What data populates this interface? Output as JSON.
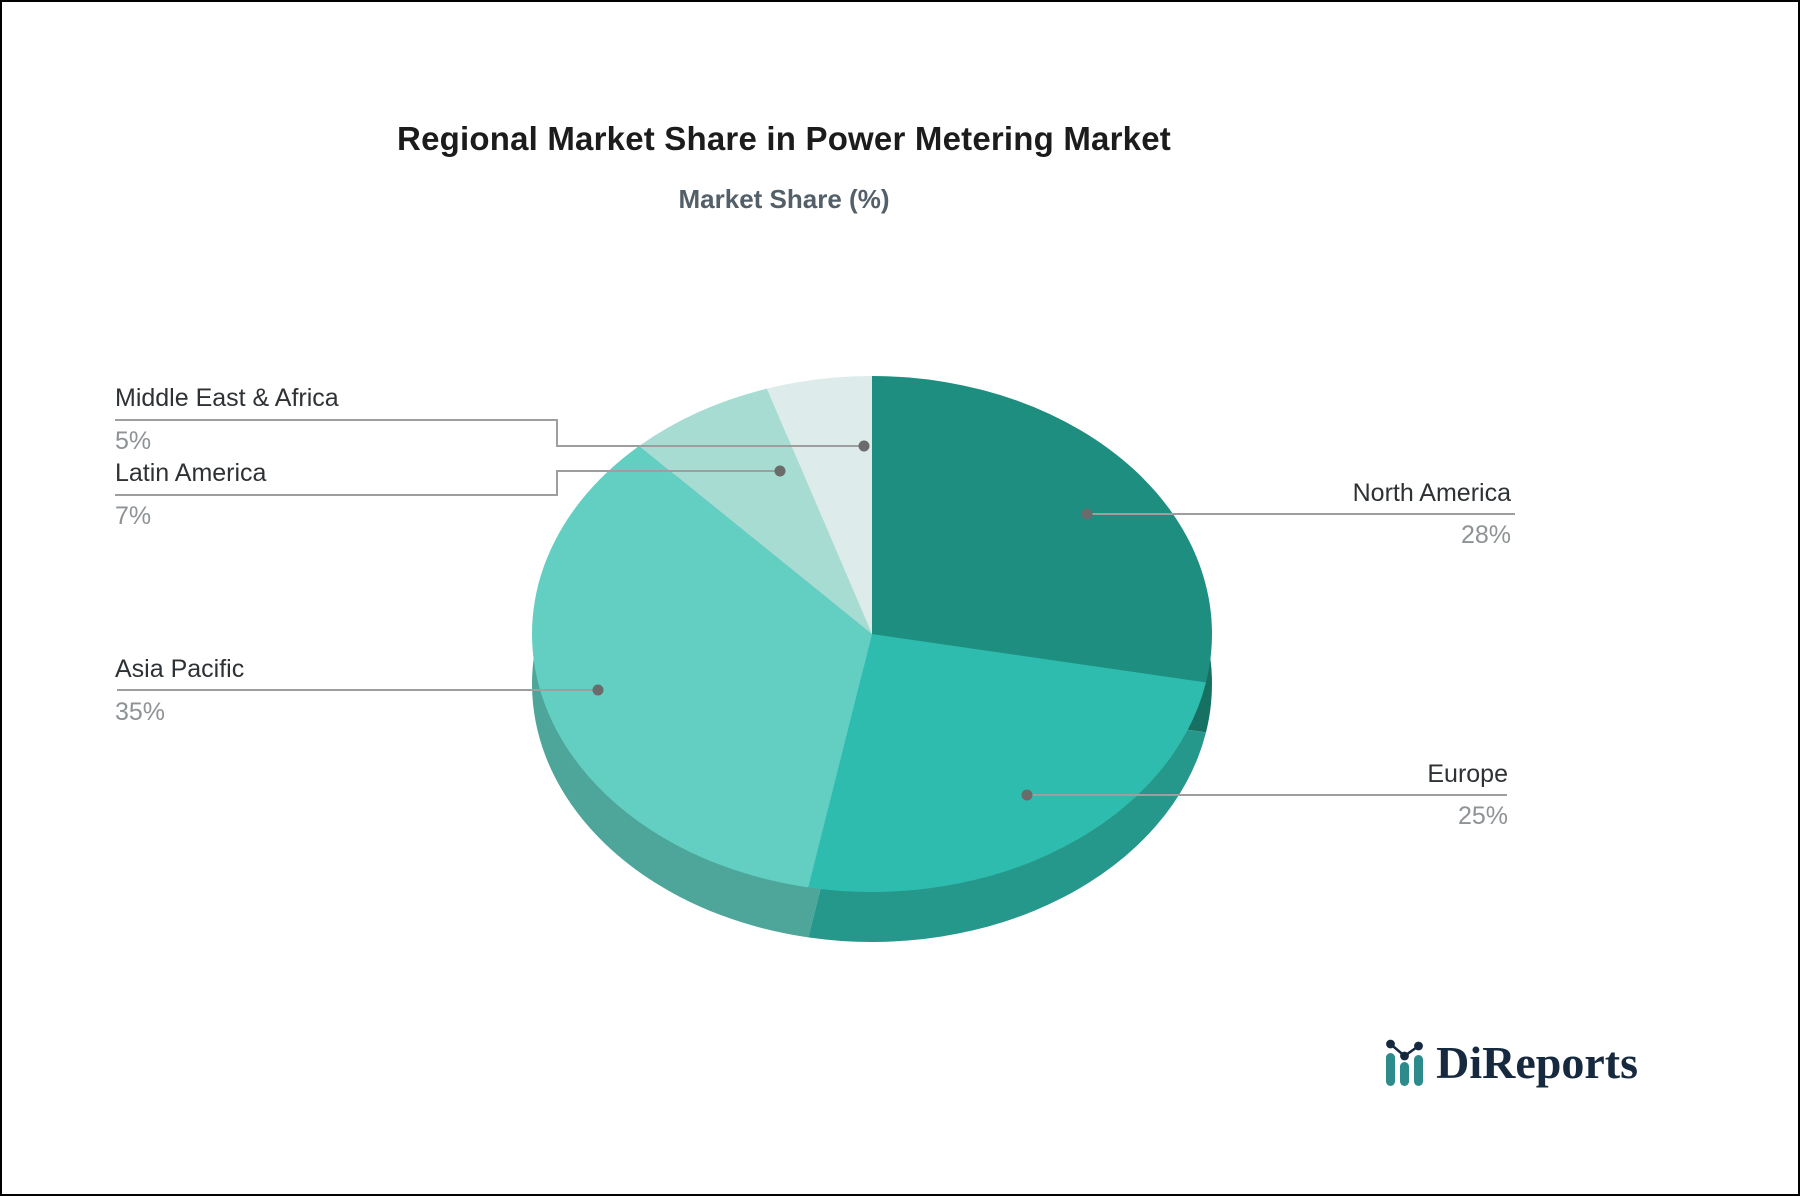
{
  "title": "Regional Market Share in Power Metering Market",
  "subtitle": "Market Share (%)",
  "chart_data": {
    "type": "pie",
    "title": "Regional Market Share in Power Metering Market",
    "subtitle": "Market Share (%)",
    "unit": "%",
    "style": "3d-pie",
    "start_angle_deg": -90,
    "direction": "clockwise",
    "legend": "none",
    "label_style": "callout leader lines with region name above line and percent below",
    "slices": [
      {
        "label": "North America",
        "value": 28,
        "display": "28%",
        "color": "#1d8e80",
        "side_color": "#177163"
      },
      {
        "label": "Europe",
        "value": 25,
        "display": "25%",
        "color": "#2ebcae",
        "side_color": "#26978b"
      },
      {
        "label": "Asia Pacific",
        "value": 35,
        "display": "35%",
        "color": "#62cfc2",
        "side_color": "#4ea59a"
      },
      {
        "label": "Latin America",
        "value": 7,
        "display": "7%",
        "color": "#a7dcd3",
        "side_color": "#85b0a8"
      },
      {
        "label": "Middle East & Africa",
        "value": 5,
        "display": "5%",
        "color": "#ddecea",
        "side_color": "#b0bcba"
      }
    ]
  },
  "logo": {
    "text": "DiReports",
    "icon": "bar-line-chart-icon",
    "text_color": "#16293e",
    "icon_bar_color": "#2e8b8b",
    "icon_dot_color": "#16293e"
  },
  "colors": {
    "background": "#ffffff",
    "frame_border": "#000000",
    "title": "#1c1c1c",
    "subtitle": "#546069",
    "label_text": "#2e3235",
    "value_text": "#8e9396",
    "leader_line": "#9e9e9e",
    "leader_dot": "#6b6b6b"
  }
}
